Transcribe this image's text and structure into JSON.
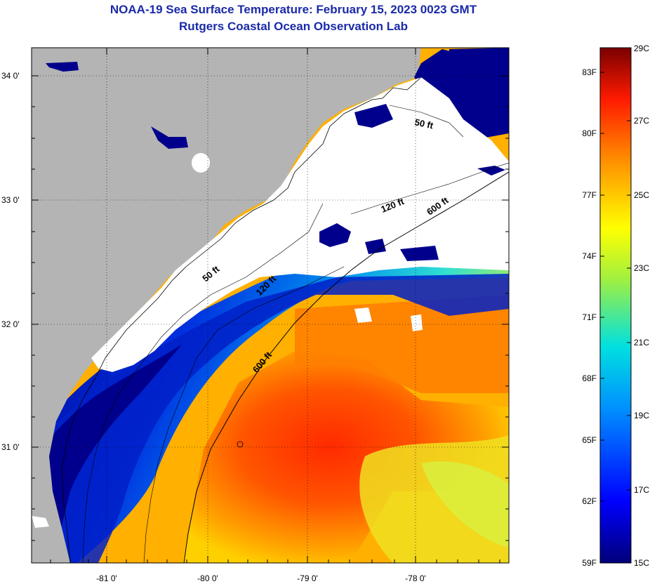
{
  "header": {
    "title": "NOAA-19 Sea Surface Temperature:  February 15, 2023 0023 GMT",
    "subtitle": "Rutgers Coastal Ocean Observation Lab"
  },
  "map": {
    "lat_ticks": [
      "34 0'",
      "33 0'",
      "32 0'",
      "31 0'"
    ],
    "lon_ticks": [
      "-81 0'",
      "-80 0'",
      "-79 0'",
      "-78 0'"
    ],
    "contour_labels": [
      "50 ft",
      "120 ft",
      "600 ft",
      "50 ft",
      "120 ft",
      "600 ft"
    ]
  },
  "colorbar": {
    "fahrenheit": [
      "83F",
      "80F",
      "77F",
      "74F",
      "71F",
      "68F",
      "65F",
      "62F",
      "59F"
    ],
    "celsius": [
      "29C",
      "27C",
      "25C",
      "23C",
      "21C",
      "19C",
      "17C",
      "15C"
    ]
  },
  "colors": {
    "land": "#b4b4b4",
    "cloud": "#ffffff",
    "cold": "#00008c",
    "title": "#1a2aa8"
  }
}
